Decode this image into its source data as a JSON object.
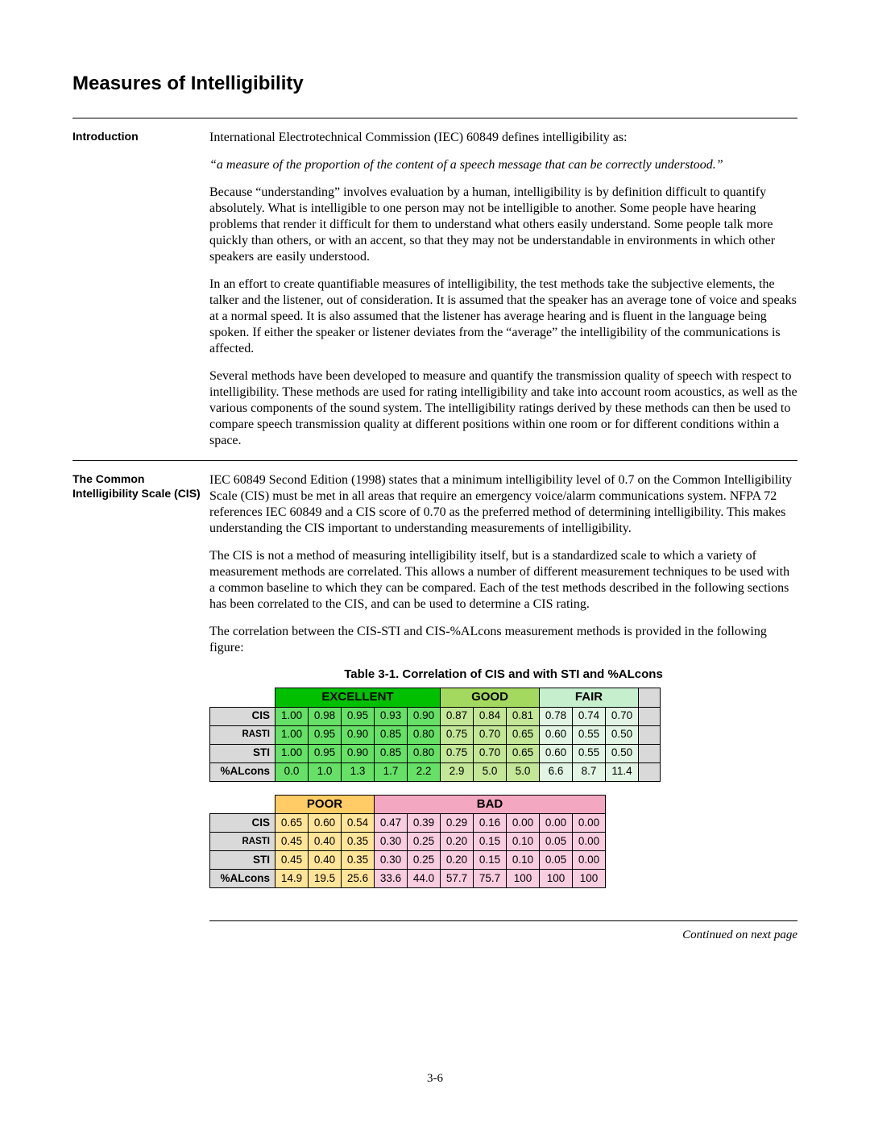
{
  "title": "Measures of Intelligibility",
  "intro_label": "Introduction",
  "cis_label": "The Common Intelligibility Scale (CIS)",
  "intro": {
    "p1": "International Electrotechnical Commission (IEC) 60849 defines intelligibility as:",
    "pquote": "“a measure of the proportion of the content of a speech message that can be correctly understood.”",
    "p2": "Because “understanding” involves evaluation by a human, intelligibility is by definition difficult to quantify absolutely.  What is intelligible to one person may not be intelligible to another.  Some people have hearing problems that render it difficult for them to understand what others easily understand.  Some people talk more quickly than others, or with an accent, so that they may not be understandable in environments in which other speakers are easily understood.",
    "p3": "In an effort to create quantifiable measures of intelligibility, the test methods take the subjective elements, the talker and the listener, out of consideration.  It is assumed that the speaker has an average tone of voice and speaks at a normal speed.  It is also assumed that the listener has average hearing and is fluent in the language being spoken.  If either the speaker or listener deviates from the “average” the intelligibility of the communications is affected.",
    "p4": "Several methods have been developed to measure and quantify the transmission quality of speech with respect to intelligibility.  These methods are used for rating intelligibility and take into account room acoustics, as well as the various components of the sound system.  The intelligibility ratings derived by these methods can then be used to compare speech transmission quality at different positions within one room or for different conditions within a space."
  },
  "cis": {
    "p1": "IEC 60849 Second Edition (1998) states that a minimum intelligibility level of 0.7 on the Common Intelligibility Scale (CIS) must be met in all areas that require an emergency voice/alarm communications system.  NFPA 72 references IEC 60849 and a CIS score of 0.70 as the preferred method of determining intelligibility.  This makes understanding the CIS important to understanding measurements of intelligibility.",
    "p2": "The CIS is not a method of measuring intelligibility itself, but is a standardized scale to which a variety of measurement methods are correlated.  This allows a number of different measurement techniques to be used with a common baseline to which they can be compared.  Each of the test methods described in the following sections has been correlated to the CIS, and can be used to determine a CIS rating.",
    "p3": "The correlation between the CIS-STI and CIS-%ALcons measurement methods is provided in the following figure:"
  },
  "table_caption": "Table 3-1.  Correlation of CIS and with STI and %ALcons",
  "footer_text": "Continued on next page",
  "page_number": "3-6",
  "colors": {
    "excellent_header": "#00c000",
    "excellent_cell": "#66e066",
    "good_header": "#a4d95f",
    "good_cell": "#c3e697",
    "fair_header": "#c6efce",
    "fair_cell": "#e2f5e4",
    "poor_header": "#ffcc66",
    "poor_cell": "#ffe599",
    "bad_header": "#f4a7c0",
    "bad_cell": "#f8cde0",
    "row_label_bg": "#d9d9d9"
  },
  "categories_top": [
    {
      "label": "EXCELLENT",
      "span": 5,
      "header_color": "#00c000",
      "cell_color": "#66e066"
    },
    {
      "label": "GOOD",
      "span": 3,
      "header_color": "#a4d95f",
      "cell_color": "#c3e697"
    },
    {
      "label": "FAIR",
      "span": 3,
      "header_color": "#c6efce",
      "cell_color": "#e2f5e4"
    }
  ],
  "categories_bottom": [
    {
      "label": "POOR",
      "span": 3,
      "header_color": "#ffcc66",
      "cell_color": "#ffe599"
    },
    {
      "label": "BAD",
      "span": 7,
      "header_color": "#f4a7c0",
      "cell_color": "#f8cde0"
    }
  ],
  "row_labels": [
    "CIS",
    "RASTI",
    "STI",
    "%ALcons"
  ],
  "top_rows": {
    "CIS": [
      "1.00",
      "0.98",
      "0.95",
      "0.93",
      "0.90",
      "0.87",
      "0.84",
      "0.81",
      "0.78",
      "0.74",
      "0.70"
    ],
    "RASTI": [
      "1.00",
      "0.95",
      "0.90",
      "0.85",
      "0.80",
      "0.75",
      "0.70",
      "0.65",
      "0.60",
      "0.55",
      "0.50"
    ],
    "STI": [
      "1.00",
      "0.95",
      "0.90",
      "0.85",
      "0.80",
      "0.75",
      "0.70",
      "0.65",
      "0.60",
      "0.55",
      "0.50"
    ],
    "%ALcons": [
      "0.0",
      "1.0",
      "1.3",
      "1.7",
      "2.2",
      "2.9",
      "5.0",
      "5.0",
      "6.6",
      "8.7",
      "11.4"
    ]
  },
  "bottom_rows": {
    "CIS": [
      "0.65",
      "0.60",
      "0.54",
      "0.47",
      "0.39",
      "0.29",
      "0.16",
      "0.00",
      "0.00",
      "0.00"
    ],
    "RASTI": [
      "0.45",
      "0.40",
      "0.35",
      "0.30",
      "0.25",
      "0.20",
      "0.15",
      "0.10",
      "0.05",
      "0.00"
    ],
    "STI": [
      "0.45",
      "0.40",
      "0.35",
      "0.30",
      "0.25",
      "0.20",
      "0.15",
      "0.10",
      "0.05",
      "0.00"
    ],
    "%ALcons": [
      "14.9",
      "19.5",
      "25.6",
      "33.6",
      "44.0",
      "57.7",
      "75.7",
      "100",
      "100",
      "100"
    ]
  }
}
